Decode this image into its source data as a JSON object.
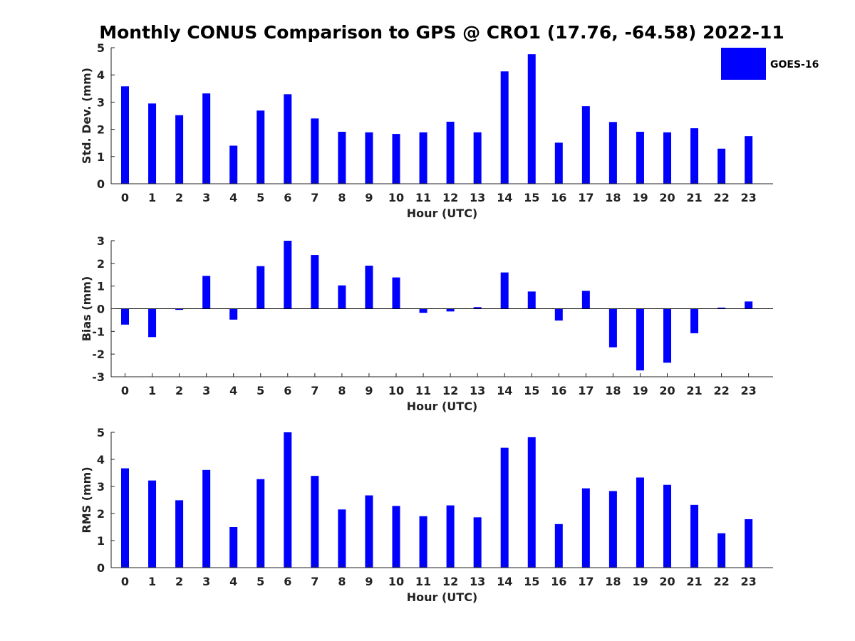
{
  "figure_title": "Monthly CONUS Comparison to GPS @ CRO1 (17.76, -64.58) 2022-11",
  "legend": {
    "label": "GOES-16",
    "color": "#0000ff",
    "placement": "top-right"
  },
  "chart_data": [
    {
      "type": "bar",
      "xlabel": "Hour (UTC)",
      "ylabel": "Std. Dev. (mm)",
      "categories": [
        "0",
        "1",
        "2",
        "3",
        "4",
        "5",
        "6",
        "7",
        "8",
        "9",
        "10",
        "11",
        "12",
        "13",
        "14",
        "15",
        "16",
        "17",
        "18",
        "19",
        "20",
        "21",
        "22",
        "23"
      ],
      "series": [
        {
          "name": "GOES-16",
          "color": "#0000ff",
          "values": [
            3.58,
            2.95,
            2.52,
            3.32,
            1.4,
            2.69,
            3.29,
            2.4,
            1.91,
            1.89,
            1.83,
            1.89,
            2.28,
            1.89,
            4.13,
            4.76,
            1.51,
            2.85,
            2.27,
            1.91,
            1.89,
            2.04,
            1.29,
            1.75
          ]
        }
      ],
      "ylim": [
        0,
        5
      ],
      "yticks": [
        0,
        1,
        2,
        3,
        4,
        5
      ],
      "grid": false
    },
    {
      "type": "bar",
      "xlabel": "Hour (UTC)",
      "ylabel": "Bias (mm)",
      "categories": [
        "0",
        "1",
        "2",
        "3",
        "4",
        "5",
        "6",
        "7",
        "8",
        "9",
        "10",
        "11",
        "12",
        "13",
        "14",
        "15",
        "16",
        "17",
        "18",
        "19",
        "20",
        "21",
        "22",
        "23"
      ],
      "series": [
        {
          "name": "GOES-16",
          "color": "#0000ff",
          "values": [
            -0.7,
            -1.25,
            -0.05,
            1.45,
            -0.48,
            1.88,
            3.0,
            2.37,
            1.03,
            1.9,
            1.38,
            -0.18,
            -0.12,
            0.07,
            1.6,
            0.76,
            -0.52,
            0.79,
            -1.7,
            -2.72,
            -2.38,
            -1.08,
            0.05,
            0.32
          ]
        }
      ],
      "ylim": [
        -3,
        3
      ],
      "yticks": [
        -3,
        -2,
        -1,
        0,
        1,
        2,
        3
      ],
      "grid": false
    },
    {
      "type": "bar",
      "xlabel": "Hour (UTC)",
      "ylabel": "RMS (mm)",
      "categories": [
        "0",
        "1",
        "2",
        "3",
        "4",
        "5",
        "6",
        "7",
        "8",
        "9",
        "10",
        "11",
        "12",
        "13",
        "14",
        "15",
        "16",
        "17",
        "18",
        "19",
        "20",
        "21",
        "22",
        "23"
      ],
      "series": [
        {
          "name": "GOES-16",
          "color": "#0000ff",
          "values": [
            3.67,
            3.22,
            2.49,
            3.61,
            1.5,
            3.27,
            5.0,
            3.39,
            2.15,
            2.67,
            2.28,
            1.9,
            2.3,
            1.86,
            4.43,
            4.82,
            1.61,
            2.93,
            2.83,
            3.33,
            3.06,
            2.32,
            1.27,
            1.79
          ]
        }
      ],
      "ylim": [
        0,
        5
      ],
      "yticks": [
        0,
        1,
        2,
        3,
        4,
        5
      ],
      "grid": false
    }
  ]
}
